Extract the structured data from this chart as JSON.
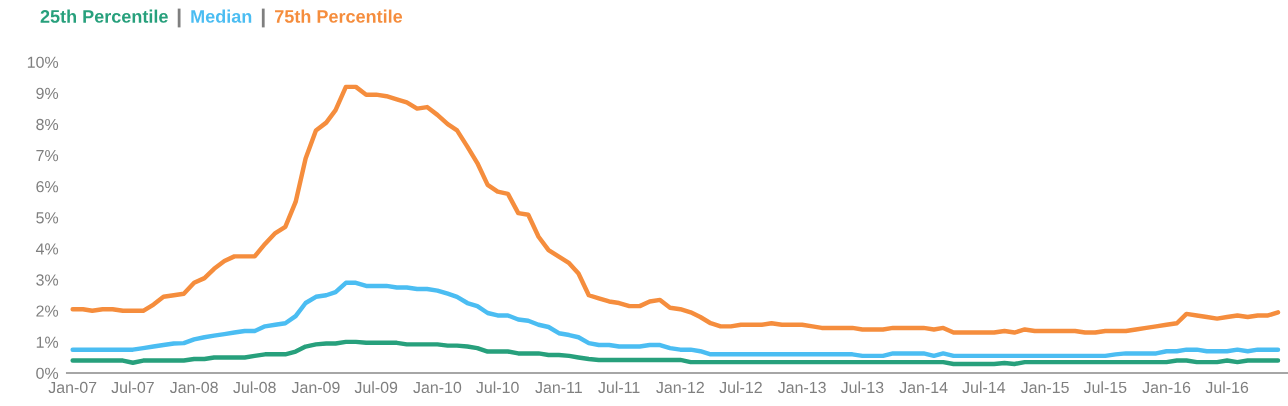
{
  "chart_data": {
    "type": "line",
    "x": [
      "2007-01",
      "2007-02",
      "2007-03",
      "2007-04",
      "2007-05",
      "2007-06",
      "2007-07",
      "2007-08",
      "2007-09",
      "2007-10",
      "2007-11",
      "2007-12",
      "2008-01",
      "2008-02",
      "2008-03",
      "2008-04",
      "2008-05",
      "2008-06",
      "2008-07",
      "2008-08",
      "2008-09",
      "2008-10",
      "2008-11",
      "2008-12",
      "2009-01",
      "2009-02",
      "2009-03",
      "2009-04",
      "2009-05",
      "2009-06",
      "2009-07",
      "2009-08",
      "2009-09",
      "2009-10",
      "2009-11",
      "2009-12",
      "2010-01",
      "2010-02",
      "2010-03",
      "2010-04",
      "2010-05",
      "2010-06",
      "2010-07",
      "2010-08",
      "2010-09",
      "2010-10",
      "2010-11",
      "2010-12",
      "2011-01",
      "2011-02",
      "2011-03",
      "2011-04",
      "2011-05",
      "2011-06",
      "2011-07",
      "2011-08",
      "2011-09",
      "2011-10",
      "2011-11",
      "2011-12",
      "2012-01",
      "2012-02",
      "2012-03",
      "2012-04",
      "2012-05",
      "2012-06",
      "2012-07",
      "2012-08",
      "2012-09",
      "2012-10",
      "2012-11",
      "2012-12",
      "2013-01",
      "2013-02",
      "2013-03",
      "2013-04",
      "2013-05",
      "2013-06",
      "2013-07",
      "2013-08",
      "2013-09",
      "2013-10",
      "2013-11",
      "2013-12",
      "2014-01",
      "2014-02",
      "2014-03",
      "2014-04",
      "2014-05",
      "2014-06",
      "2014-07",
      "2014-08",
      "2014-09",
      "2014-10",
      "2014-11",
      "2014-12",
      "2015-01",
      "2015-02",
      "2015-03",
      "2015-04",
      "2015-05",
      "2015-06",
      "2015-07",
      "2015-08",
      "2015-09",
      "2015-10",
      "2015-11",
      "2015-12",
      "2016-01",
      "2016-02",
      "2016-03",
      "2016-04",
      "2016-05",
      "2016-06",
      "2016-07",
      "2016-08",
      "2016-09",
      "2016-10",
      "2016-11",
      "2016-12"
    ],
    "series": [
      {
        "name": "25th Percentile",
        "color": "#27a07c",
        "values": [
          0.4,
          0.4,
          0.4,
          0.4,
          0.4,
          0.4,
          0.33,
          0.4,
          0.4,
          0.4,
          0.4,
          0.4,
          0.45,
          0.45,
          0.5,
          0.5,
          0.5,
          0.5,
          0.55,
          0.6,
          0.6,
          0.6,
          0.69,
          0.85,
          0.92,
          0.95,
          0.95,
          1.0,
          1.0,
          0.97,
          0.97,
          0.97,
          0.97,
          0.92,
          0.92,
          0.92,
          0.92,
          0.88,
          0.88,
          0.85,
          0.8,
          0.69,
          0.69,
          0.69,
          0.63,
          0.63,
          0.63,
          0.58,
          0.58,
          0.55,
          0.5,
          0.45,
          0.42,
          0.42,
          0.42,
          0.42,
          0.42,
          0.42,
          0.42,
          0.42,
          0.42,
          0.35,
          0.35,
          0.35,
          0.35,
          0.35,
          0.35,
          0.35,
          0.35,
          0.35,
          0.35,
          0.35,
          0.35,
          0.35,
          0.35,
          0.35,
          0.35,
          0.35,
          0.35,
          0.35,
          0.35,
          0.35,
          0.35,
          0.35,
          0.35,
          0.35,
          0.35,
          0.29,
          0.29,
          0.29,
          0.29,
          0.29,
          0.32,
          0.29,
          0.35,
          0.35,
          0.35,
          0.35,
          0.35,
          0.35,
          0.35,
          0.35,
          0.35,
          0.35,
          0.35,
          0.35,
          0.35,
          0.35,
          0.35,
          0.4,
          0.4,
          0.35,
          0.35,
          0.35,
          0.4,
          0.35,
          0.4,
          0.4,
          0.4,
          0.4
        ]
      },
      {
        "name": "Median",
        "color": "#4bbdf2",
        "values": [
          0.75,
          0.75,
          0.75,
          0.75,
          0.75,
          0.75,
          0.75,
          0.8,
          0.85,
          0.9,
          0.95,
          0.96,
          1.08,
          1.15,
          1.2,
          1.25,
          1.3,
          1.35,
          1.35,
          1.5,
          1.55,
          1.6,
          1.83,
          2.25,
          2.45,
          2.5,
          2.6,
          2.9,
          2.9,
          2.8,
          2.8,
          2.8,
          2.75,
          2.75,
          2.7,
          2.7,
          2.65,
          2.55,
          2.45,
          2.25,
          2.15,
          1.93,
          1.85,
          1.85,
          1.72,
          1.68,
          1.55,
          1.48,
          1.28,
          1.22,
          1.15,
          0.96,
          0.9,
          0.9,
          0.85,
          0.85,
          0.85,
          0.9,
          0.9,
          0.8,
          0.75,
          0.75,
          0.7,
          0.6,
          0.6,
          0.6,
          0.6,
          0.6,
          0.6,
          0.6,
          0.6,
          0.6,
          0.6,
          0.6,
          0.6,
          0.6,
          0.6,
          0.6,
          0.55,
          0.55,
          0.55,
          0.63,
          0.63,
          0.63,
          0.63,
          0.55,
          0.63,
          0.55,
          0.55,
          0.55,
          0.55,
          0.55,
          0.55,
          0.55,
          0.55,
          0.55,
          0.55,
          0.55,
          0.55,
          0.55,
          0.55,
          0.55,
          0.55,
          0.6,
          0.63,
          0.63,
          0.63,
          0.63,
          0.7,
          0.7,
          0.75,
          0.75,
          0.7,
          0.7,
          0.7,
          0.75,
          0.7,
          0.75,
          0.75,
          0.75
        ]
      },
      {
        "name": "75th Percentile",
        "color": "#f58d3d",
        "values": [
          2.05,
          2.05,
          2.0,
          2.05,
          2.05,
          2.0,
          2.0,
          2.0,
          2.2,
          2.45,
          2.5,
          2.55,
          2.9,
          3.05,
          3.35,
          3.6,
          3.75,
          3.75,
          3.75,
          4.15,
          4.5,
          4.7,
          5.5,
          6.9,
          7.8,
          8.05,
          8.45,
          9.2,
          9.2,
          8.95,
          8.95,
          8.9,
          8.8,
          8.7,
          8.5,
          8.55,
          8.3,
          8.0,
          7.8,
          7.28,
          6.75,
          6.05,
          5.83,
          5.76,
          5.14,
          5.09,
          4.38,
          3.95,
          3.74,
          3.53,
          3.2,
          2.5,
          2.4,
          2.3,
          2.25,
          2.15,
          2.15,
          2.3,
          2.35,
          2.1,
          2.05,
          1.95,
          1.8,
          1.6,
          1.5,
          1.5,
          1.55,
          1.55,
          1.55,
          1.6,
          1.55,
          1.55,
          1.55,
          1.5,
          1.45,
          1.45,
          1.45,
          1.45,
          1.4,
          1.4,
          1.4,
          1.45,
          1.45,
          1.45,
          1.45,
          1.4,
          1.45,
          1.3,
          1.3,
          1.3,
          1.3,
          1.3,
          1.35,
          1.3,
          1.4,
          1.35,
          1.35,
          1.35,
          1.35,
          1.35,
          1.3,
          1.3,
          1.35,
          1.35,
          1.35,
          1.4,
          1.45,
          1.5,
          1.55,
          1.6,
          1.9,
          1.85,
          1.8,
          1.75,
          1.8,
          1.85,
          1.8,
          1.85,
          1.85,
          1.95
        ]
      }
    ],
    "ylim": [
      0,
      10
    ],
    "yticks": [
      {
        "value": 0,
        "label": "0%"
      },
      {
        "value": 1,
        "label": "1%"
      },
      {
        "value": 2,
        "label": "2%"
      },
      {
        "value": 3,
        "label": "3%"
      },
      {
        "value": 4,
        "label": "4%"
      },
      {
        "value": 5,
        "label": "5%"
      },
      {
        "value": 6,
        "label": "6%"
      },
      {
        "value": 7,
        "label": "7%"
      },
      {
        "value": 8,
        "label": "8%"
      },
      {
        "value": 9,
        "label": "9%"
      },
      {
        "value": 10,
        "label": "10%"
      }
    ],
    "xlim": [
      "2006-12-15",
      "2016-12-31"
    ],
    "xticks": [
      {
        "value": "2007-01",
        "label": "Jan-07"
      },
      {
        "value": "2007-07",
        "label": "Jul-07"
      },
      {
        "value": "2008-01",
        "label": "Jan-08"
      },
      {
        "value": "2008-07",
        "label": "Jul-08"
      },
      {
        "value": "2009-01",
        "label": "Jan-09"
      },
      {
        "value": "2009-07",
        "label": "Jul-09"
      },
      {
        "value": "2010-01",
        "label": "Jan-10"
      },
      {
        "value": "2010-07",
        "label": "Jul-10"
      },
      {
        "value": "2011-01",
        "label": "Jan-11"
      },
      {
        "value": "2011-07",
        "label": "Jul-11"
      },
      {
        "value": "2012-01",
        "label": "Jan-12"
      },
      {
        "value": "2012-07",
        "label": "Jul-12"
      },
      {
        "value": "2013-01",
        "label": "Jan-13"
      },
      {
        "value": "2013-07",
        "label": "Jul-13"
      },
      {
        "value": "2014-01",
        "label": "Jan-14"
      },
      {
        "value": "2014-07",
        "label": "Jul-14"
      },
      {
        "value": "2015-01",
        "label": "Jan-15"
      },
      {
        "value": "2015-07",
        "label": "Jul-15"
      },
      {
        "value": "2016-01",
        "label": "Jan-16"
      },
      {
        "value": "2016-07",
        "label": "Jul-16"
      }
    ],
    "grid": false,
    "legend": "top left",
    "marker": "none",
    "line_style": "solid"
  }
}
